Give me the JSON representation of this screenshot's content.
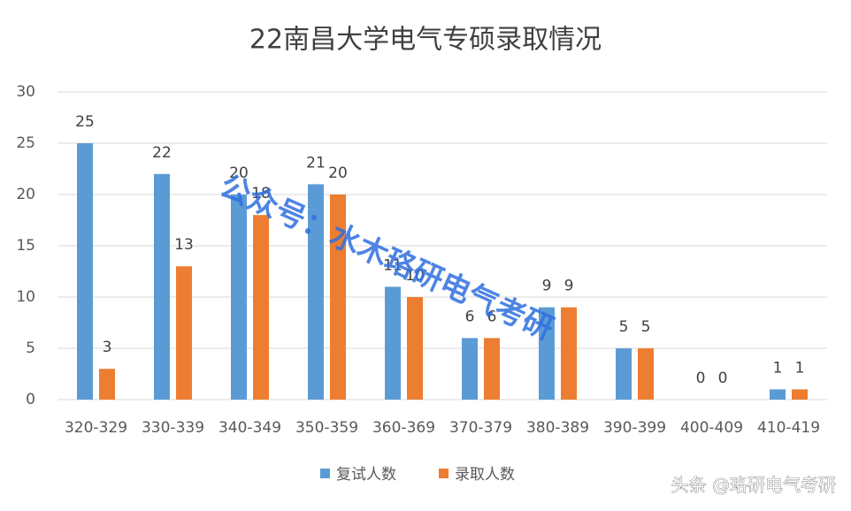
{
  "chart_data": {
    "type": "bar",
    "title": "22南昌大学电气专硕录取情况",
    "categories": [
      "320-329",
      "330-339",
      "340-349",
      "350-359",
      "360-369",
      "370-379",
      "380-389",
      "390-399",
      "400-409",
      "410-419"
    ],
    "series": [
      {
        "name": "复试人数",
        "color": "#5b9bd5",
        "values": [
          25,
          22,
          20,
          21,
          11,
          6,
          9,
          5,
          0,
          1
        ]
      },
      {
        "name": "录取人数",
        "color": "#ed7d31",
        "values": [
          3,
          13,
          18,
          20,
          10,
          6,
          9,
          5,
          0,
          1
        ]
      }
    ],
    "ylim": [
      0,
      30
    ],
    "yticks": [
      0,
      5,
      10,
      15,
      20,
      25,
      30
    ],
    "grid": true,
    "legend": "bottom",
    "annotations": [
      "公众号：水木珞研电气考研",
      "头条 @珞研电气考研"
    ]
  }
}
